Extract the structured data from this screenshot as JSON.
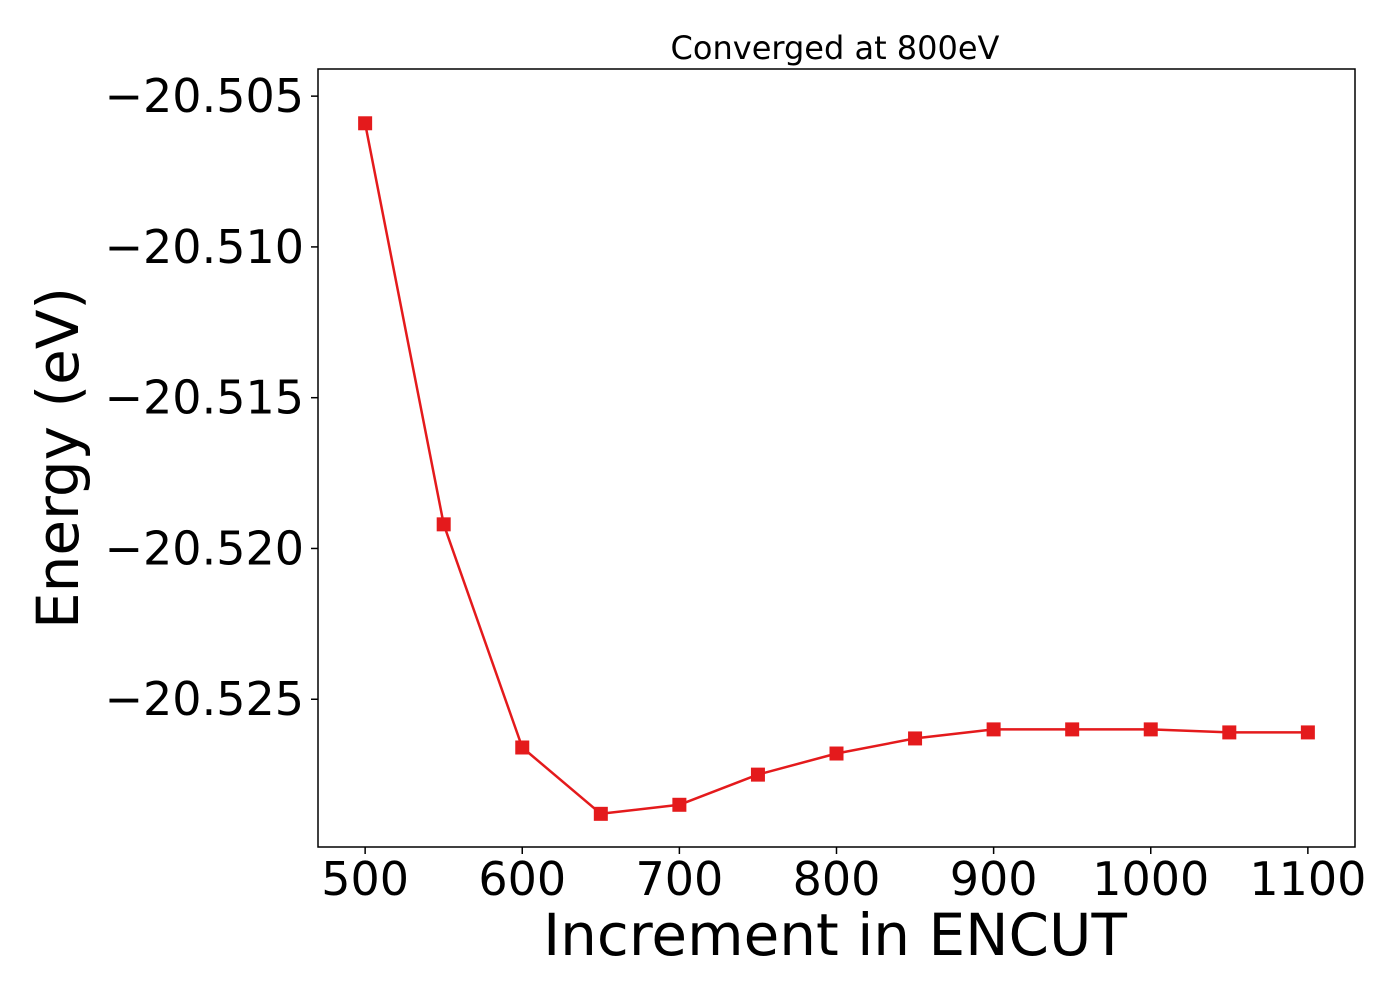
{
  "chart_data": {
    "type": "line",
    "title": "Converged at 800eV",
    "xlabel": "Increment in ENCUT",
    "ylabel": "Energy (eV)",
    "x": [
      500,
      550,
      600,
      650,
      700,
      750,
      800,
      850,
      900,
      950,
      1000,
      1050,
      1100
    ],
    "series": [
      {
        "values": [
          -20.5059,
          -20.5192,
          -20.5266,
          -20.5288,
          -20.5285,
          -20.5275,
          -20.5268,
          -20.5263,
          -20.526,
          -20.526,
          -20.526,
          -20.5261,
          -20.5261
        ],
        "color": "#e41a1c",
        "marker": "square"
      }
    ],
    "xlim": [
      470,
      1130
    ],
    "ylim": [
      -20.5299,
      -20.5041
    ],
    "xticks": [
      500,
      600,
      700,
      800,
      900,
      1000,
      1100
    ],
    "xtick_labels": [
      "500",
      "600",
      "700",
      "800",
      "900",
      "1000",
      "1100"
    ],
    "yticks": [
      -20.505,
      -20.51,
      -20.515,
      -20.52,
      -20.525
    ],
    "ytick_labels": [
      "−20.505",
      "−20.510",
      "−20.515",
      "−20.520",
      "−20.525"
    ],
    "grid": false,
    "legend": "none"
  }
}
